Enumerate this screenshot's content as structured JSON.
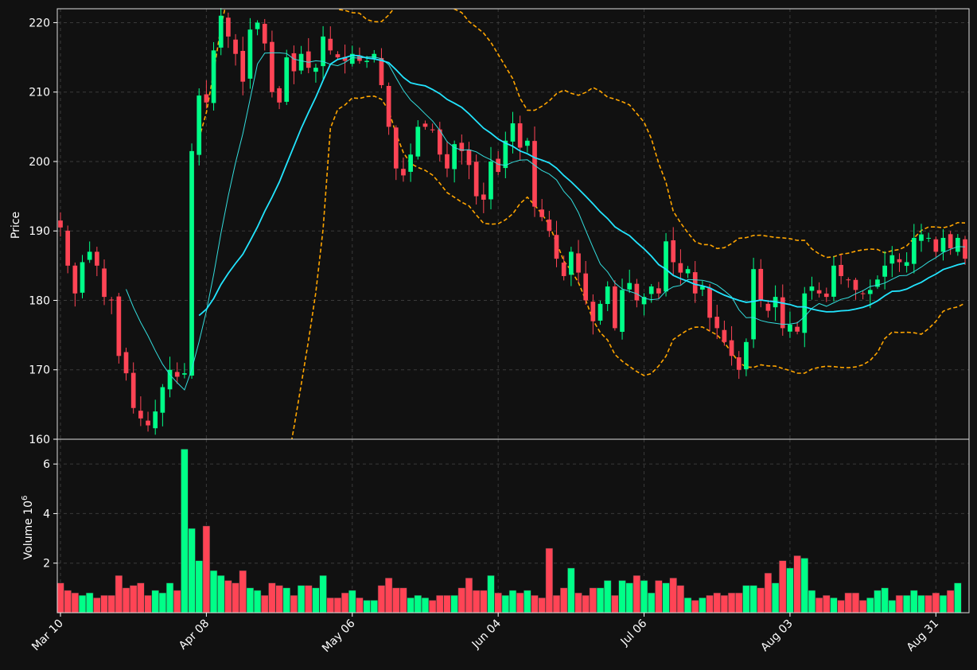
{
  "chart_data": {
    "type": "candlestick",
    "price_panel": {
      "ylabel": "Price",
      "ylim": [
        160,
        222
      ],
      "yticks": [
        160,
        170,
        180,
        190,
        200,
        210,
        220
      ]
    },
    "volume_panel": {
      "ylabel": "Volume  10^6",
      "ylim": [
        0,
        7
      ],
      "yticks": [
        2,
        4,
        6
      ]
    },
    "x_tick_labels": [
      {
        "label": "Mar 10",
        "index": 0
      },
      {
        "label": "Apr 08",
        "index": 20
      },
      {
        "label": "May 06",
        "index": 40
      },
      {
        "label": "Jun 04",
        "index": 60
      },
      {
        "label": "Jul 06",
        "index": 80
      },
      {
        "label": "Aug 03",
        "index": 100
      },
      {
        "label": "Aug 31",
        "index": 120
      }
    ],
    "grid": true,
    "colors": {
      "up": "#00ff88",
      "down": "#ff4455",
      "ma_fast": "#33dddd",
      "ma_slow": "#22e5ff",
      "bollinger": "#ffa500",
      "background": "#111111",
      "grid": "#3a3a3a",
      "text": "#ffffff"
    },
    "close": [
      190.5,
      185,
      181,
      185.5,
      187,
      185,
      180.5,
      180,
      172,
      169.5,
      164.5,
      163,
      162,
      164,
      167.5,
      170,
      169,
      169.5,
      201.5,
      209.5,
      208.5,
      216,
      221,
      218,
      215.5,
      211.5,
      219,
      220,
      217,
      210,
      208.5,
      215,
      213,
      215.5,
      213.5,
      213.5,
      218,
      216,
      215,
      214.5,
      215.5,
      214.5,
      214.5,
      215.5,
      211,
      205,
      199,
      198,
      201,
      205,
      205,
      204.5,
      201,
      199,
      202.5,
      201.5,
      199.5,
      195,
      194.5,
      200,
      198.5,
      203,
      205.5,
      202,
      203,
      193.5,
      192,
      190,
      186,
      183.5,
      187,
      184,
      180,
      177,
      179.5,
      182,
      176,
      181.5,
      182.5,
      180,
      180.5,
      182,
      181,
      188.5,
      185.5,
      184,
      184.5,
      181,
      182,
      177.5,
      176,
      174,
      172,
      170,
      174,
      184.5,
      180,
      178.5,
      180.5,
      176,
      176.5,
      175.5,
      181,
      182,
      181,
      180.5,
      185,
      183.5,
      183,
      181.5,
      181,
      181.5,
      183,
      185,
      186.5,
      185.5,
      185.5,
      189,
      189.5,
      189,
      187,
      189,
      187.5,
      189,
      186
    ],
    "volume_millions": [
      1.2,
      0.9,
      0.8,
      0.7,
      0.8,
      0.6,
      0.7,
      0.7,
      1.5,
      1.0,
      1.1,
      1.2,
      0.7,
      0.9,
      0.8,
      1.2,
      0.9,
      6.6,
      3.4,
      2.1,
      3.5,
      1.7,
      1.5,
      1.3,
      1.2,
      1.7,
      1.0,
      0.9,
      0.7,
      1.2,
      1.1,
      1.0,
      0.7,
      1.1,
      1.1,
      1.0,
      1.5,
      0.6,
      0.6,
      0.8,
      0.9,
      0.6,
      0.5,
      0.5,
      1.1,
      1.4,
      1.0,
      1.0,
      0.6,
      0.7,
      0.6,
      0.5,
      0.7,
      0.7,
      0.7,
      1.0,
      1.4,
      0.9,
      0.9,
      1.5,
      0.8,
      0.7,
      0.9,
      0.8,
      0.9,
      0.7,
      0.6,
      2.6,
      0.7,
      1.0,
      1.8,
      0.8,
      0.7,
      1.0,
      1.0,
      1.3,
      0.7,
      1.3,
      1.2,
      1.5,
      1.3,
      0.8,
      1.3,
      1.2,
      1.4,
      1.1,
      0.6,
      0.5,
      0.6,
      0.7,
      0.8,
      0.7,
      0.8,
      0.8,
      1.1,
      1.1,
      1.0,
      1.6,
      1.2,
      2.1,
      1.8,
      2.3,
      2.2,
      0.9,
      0.6,
      0.7,
      0.6,
      0.5,
      0.8,
      0.8,
      0.5,
      0.6,
      0.9,
      1.0,
      0.5,
      0.7,
      0.7,
      0.9,
      0.7,
      0.7,
      0.8,
      0.7,
      0.9,
      1.2
    ]
  }
}
